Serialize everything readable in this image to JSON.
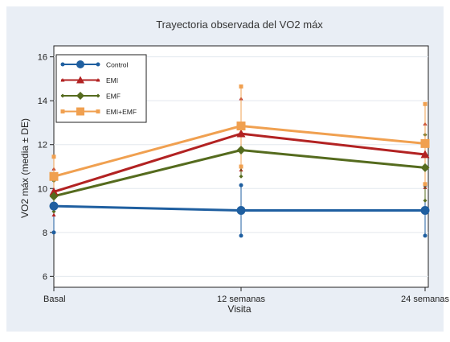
{
  "chart_data": {
    "type": "line",
    "title": "Trayectoria observada del VO2 máx",
    "xlabel": "Visita",
    "ylabel": "VO2 máx (media ± DE)",
    "categories": [
      "Basal",
      "12 semanas",
      "24 semanas"
    ],
    "ylim": [
      5.5,
      16.5
    ],
    "yticks": [
      6,
      8,
      10,
      12,
      14,
      16
    ],
    "grid": true,
    "legend_position": "top-left",
    "series": [
      {
        "name": "Control",
        "color": "#1f5fa0",
        "marker": "circle",
        "values": [
          9.2,
          9.0,
          9.0
        ],
        "lower": [
          8.0,
          7.85,
          7.85
        ],
        "upper": [
          10.4,
          10.15,
          10.15
        ]
      },
      {
        "name": "EMI",
        "color": "#b22222",
        "marker": "triangle",
        "values": [
          9.85,
          12.5,
          11.55
        ],
        "lower": [
          8.8,
          10.85,
          10.05
        ],
        "upper": [
          10.9,
          14.1,
          12.95
        ]
      },
      {
        "name": "EMF",
        "color": "#556b1e",
        "marker": "diamond",
        "values": [
          9.65,
          11.75,
          10.95
        ],
        "lower": [
          8.95,
          10.55,
          9.45
        ],
        "upper": [
          10.35,
          12.9,
          12.45
        ]
      },
      {
        "name": "EMI+EMF",
        "color": "#f0a050",
        "marker": "square",
        "values": [
          10.55,
          12.85,
          12.05
        ],
        "lower": [
          9.65,
          11.0,
          10.2
        ],
        "upper": [
          11.45,
          14.65,
          13.85
        ]
      }
    ]
  }
}
